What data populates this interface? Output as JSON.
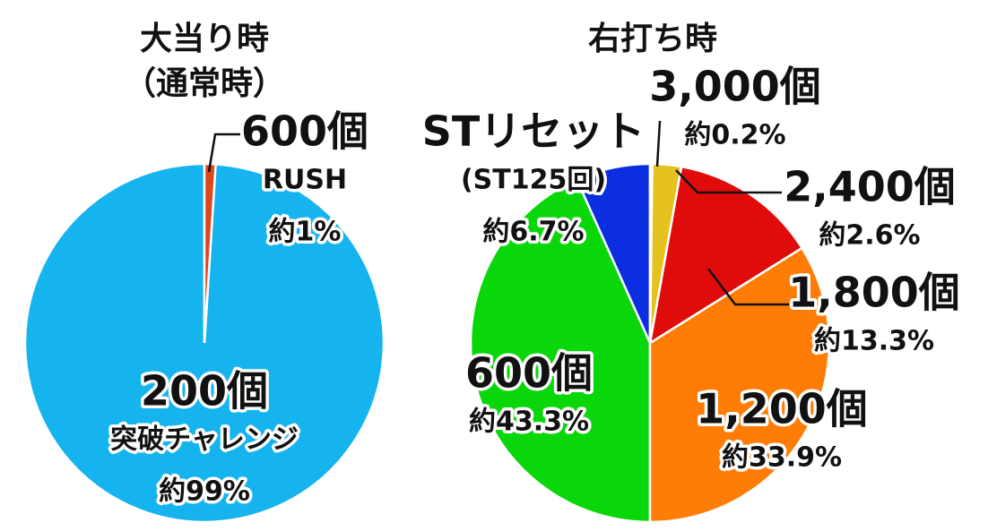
{
  "chart_data": [
    {
      "type": "pie",
      "title": "大当り時",
      "subtitle": "（通常時）",
      "categories": [
        "600個",
        "200個"
      ],
      "names": [
        "RUSH",
        "突破チャレンジ"
      ],
      "values": [
        1,
        99
      ],
      "value_labels": [
        "約1%",
        "約99%"
      ],
      "colors": [
        "#d9491b",
        "#16b4ef"
      ]
    },
    {
      "type": "pie",
      "title": "右打ち時",
      "categories": [
        "3,000個",
        "2,400個",
        "1,800個",
        "1,200個",
        "600個",
        "STリセット"
      ],
      "names": [
        null,
        null,
        null,
        null,
        null,
        "(ST125回)"
      ],
      "values": [
        0.2,
        2.6,
        13.3,
        33.9,
        43.3,
        6.7
      ],
      "value_labels": [
        "約0.2%",
        "約2.6%",
        "約13.3%",
        "約33.9%",
        "約43.3%",
        "約6.7%"
      ],
      "colors": [
        "#3ed85a",
        "#e6c21e",
        "#e00b0b",
        "#ff7d06",
        "#0ad70a",
        "#0a2ee0"
      ]
    }
  ]
}
